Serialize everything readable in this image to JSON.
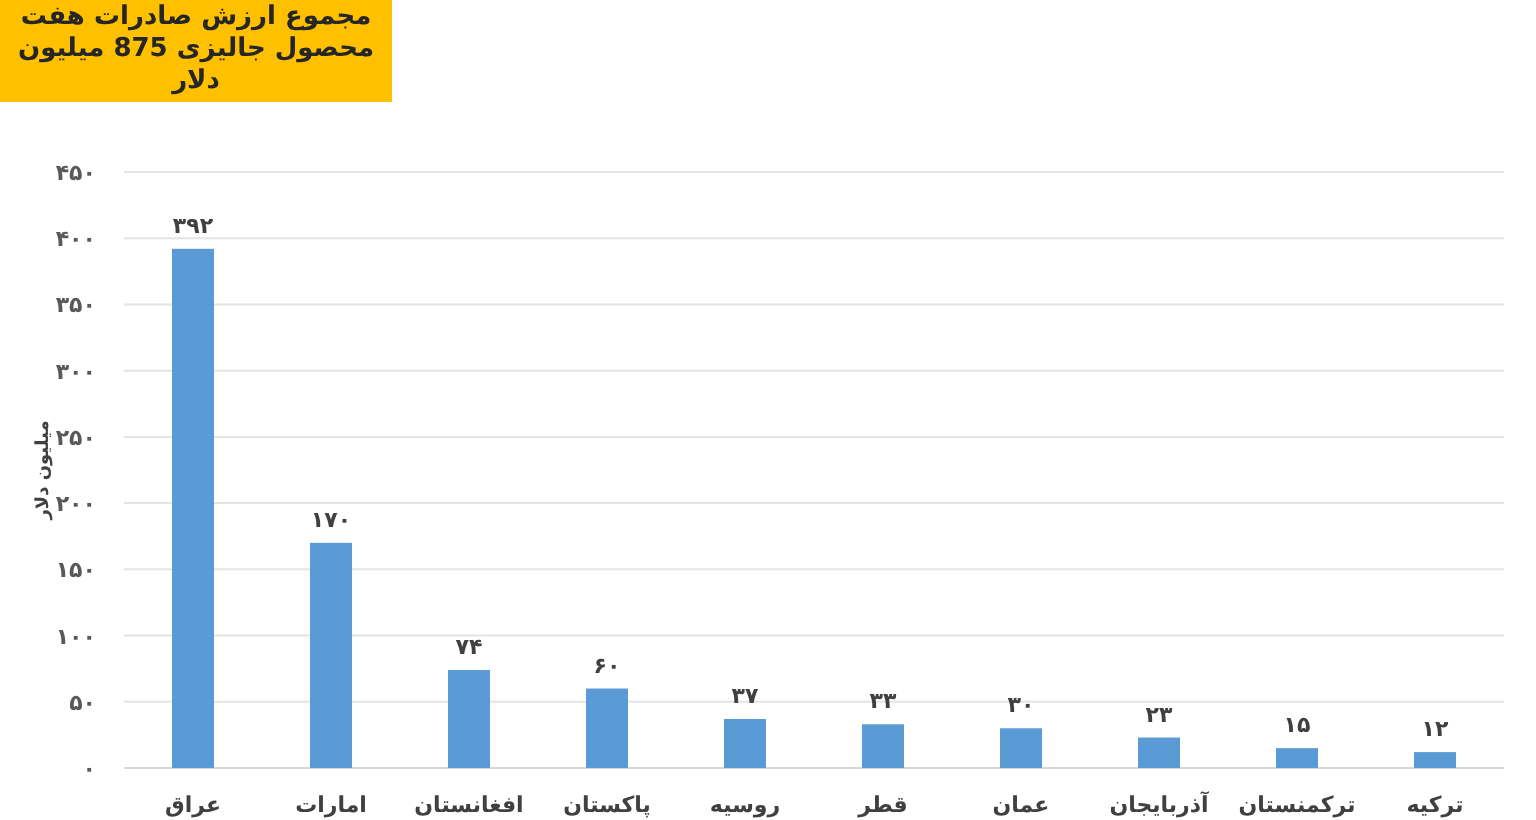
{
  "chart_data": {
    "type": "bar",
    "title": "مجموع ارزش صادرات هفت محصول جالیزی 875 میلیون دلار",
    "ylabel": "میلیون دلار",
    "categories": [
      "عراق",
      "امارات",
      "افغانستان",
      "پاکستان",
      "روسیه",
      "قطر",
      "عمان",
      "آذربایجان",
      "ترکمنستان",
      "ترکیه"
    ],
    "values": [
      392,
      170,
      74,
      60,
      37,
      33,
      30,
      23,
      15,
      12
    ],
    "color": "#5b9bd5",
    "value_labels": [
      "۳۹۲",
      "۱۷۰",
      "۷۴",
      "۶۰",
      "۳۷",
      "۳۳",
      "۳۰",
      "۲۳",
      "۱۵",
      "۱۲"
    ],
    "ylim": [
      0,
      450
    ],
    "yticks": [
      {
        "value": 0,
        "label": "۰"
      },
      {
        "value": 50,
        "label": "۵۰"
      },
      {
        "value": 100,
        "label": "۱۰۰"
      },
      {
        "value": 150,
        "label": "۱۵۰"
      },
      {
        "value": 200,
        "label": "۲۰۰"
      },
      {
        "value": 250,
        "label": "۲۵۰"
      },
      {
        "value": 300,
        "label": "۳۰۰"
      },
      {
        "value": 350,
        "label": "۳۵۰"
      },
      {
        "value": 400,
        "label": "۴۰۰"
      },
      {
        "value": 450,
        "label": "۴۵۰"
      }
    ],
    "grid": "y"
  }
}
